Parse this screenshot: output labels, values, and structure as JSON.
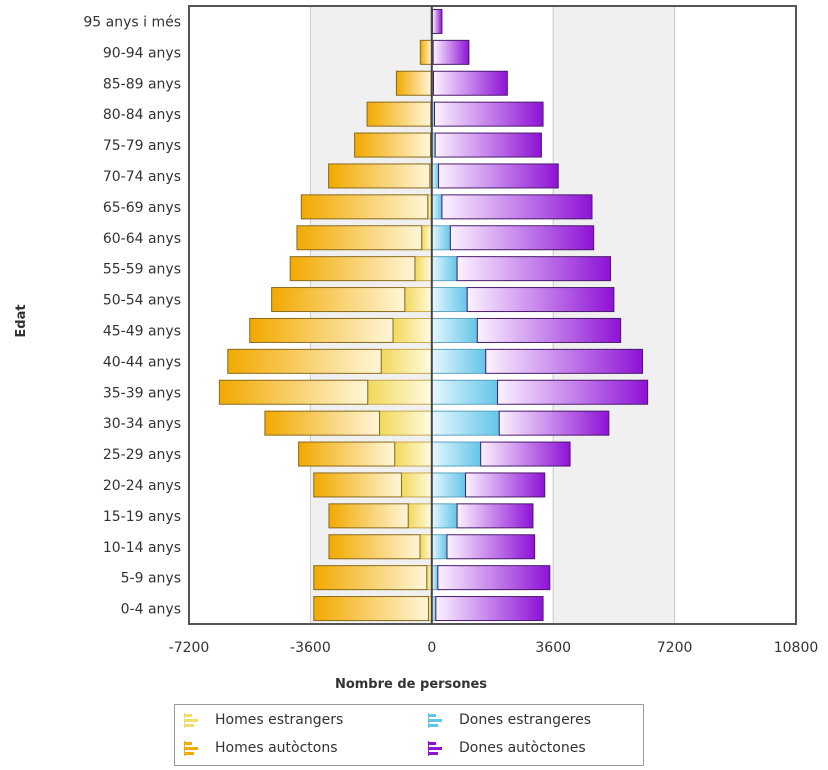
{
  "chart_data": {
    "type": "bar",
    "orientation": "horizontal",
    "stacked": true,
    "xlabel": "Nombre de persones",
    "ylabel": "Edat",
    "xlim": [
      -7200,
      10800
    ],
    "xticks": [
      "-7200",
      "-3600",
      "0",
      "3600",
      "7200",
      "10800"
    ],
    "tick_values": [
      -7200,
      -3600,
      0,
      3600,
      7200,
      10800
    ],
    "grid": "alternating vertical bands",
    "legend_position": "bottom",
    "categories": [
      "0-4 anys",
      "5-9 anys",
      "10-14 anys",
      "15-19 anys",
      "20-24 anys",
      "25-29 anys",
      "30-34 anys",
      "35-39 anys",
      "40-44 anys",
      "45-49 anys",
      "50-54 anys",
      "55-59 anys",
      "60-64 anys",
      "65-69 anys",
      "70-74 anys",
      "75-79 anys",
      "80-84 anys",
      "85-89 anys",
      "90-94 anys",
      "95 anys i més"
    ],
    "series": [
      {
        "name": "Homes estrangers",
        "color": "#f2dc6e",
        "side": "negative",
        "values": [
          -100,
          -150,
          -350,
          -700,
          -900,
          -1100,
          -1550,
          -1900,
          -1500,
          -1150,
          -800,
          -500,
          -300,
          -120,
          -60,
          -40,
          -30,
          -20,
          -10,
          -5
        ]
      },
      {
        "name": "Homes autòctons",
        "color": "#f2a900",
        "side": "negative",
        "values": [
          -3400,
          -3350,
          -2700,
          -2350,
          -2600,
          -2850,
          -3400,
          -4400,
          -4550,
          -4250,
          -3950,
          -3700,
          -3700,
          -3750,
          -3000,
          -2250,
          -1890,
          -1030,
          -330,
          -10
        ]
      },
      {
        "name": "Dones estrangeres",
        "color": "#63c5e8",
        "side": "positive",
        "values": [
          120,
          180,
          450,
          750,
          1000,
          1450,
          2000,
          1950,
          1600,
          1350,
          1050,
          750,
          550,
          300,
          200,
          100,
          80,
          50,
          40,
          20
        ]
      },
      {
        "name": "Dones autòctones",
        "color": "#8e12d6",
        "side": "positive",
        "values": [
          3180,
          3320,
          2600,
          2250,
          2350,
          2650,
          3250,
          4450,
          4650,
          4250,
          4350,
          4550,
          4250,
          4450,
          3550,
          3150,
          3220,
          2190,
          1060,
          280
        ]
      }
    ]
  },
  "legend": [
    {
      "label": "Homes estrangers",
      "icon": "bar-chart-icon",
      "color": "#f2dc6e"
    },
    {
      "label": "Dones estrangeres",
      "icon": "bar-chart-icon",
      "color": "#63c5e8"
    },
    {
      "label": "Homes autòctons",
      "icon": "bar-chart-icon",
      "color": "#f2a900"
    },
    {
      "label": "Dones autòctones",
      "icon": "bar-chart-icon",
      "color": "#8e12d6"
    }
  ]
}
